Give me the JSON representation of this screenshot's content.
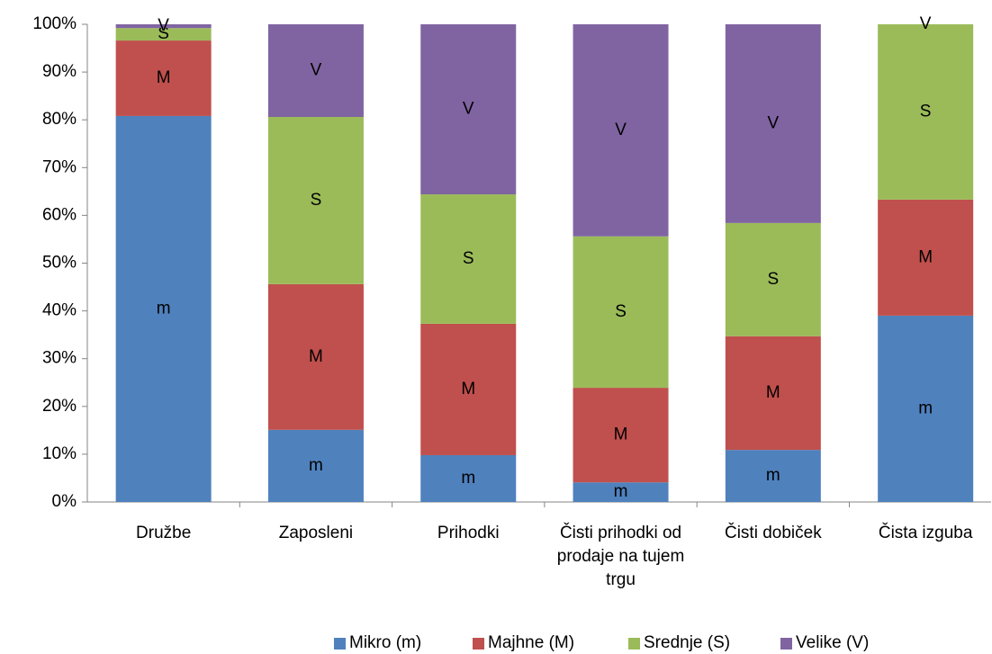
{
  "chart_data": {
    "type": "stacked_bar_100",
    "categories": [
      "Družbe",
      "Zaposleni",
      "Prihodki",
      "Čisti prihodki od prodaje na tujem trgu",
      "Čisti dobiček",
      "Čista izguba"
    ],
    "series": [
      {
        "name": "Mikro (m)",
        "color": "#4f81bd",
        "values": [
          80.8,
          15.1,
          9.8,
          4.1,
          10.9,
          39.0
        ],
        "value_labels": [
          "m",
          "m",
          "m",
          "m",
          "m",
          "m"
        ]
      },
      {
        "name": "Majhne (M)",
        "color": "#c0504d",
        "values": [
          15.8,
          30.5,
          27.5,
          19.8,
          23.8,
          24.3
        ],
        "value_labels": [
          "M",
          "M",
          "M",
          "M",
          "M",
          "M"
        ]
      },
      {
        "name": "Srednje (S)",
        "color": "#9bbb59",
        "values": [
          2.6,
          35.0,
          27.1,
          31.7,
          23.7,
          36.7
        ],
        "value_labels": [
          "S",
          "S",
          "S",
          "S",
          "S",
          "S"
        ]
      },
      {
        "name": "Velike (V)",
        "color": "#8064a2",
        "values": [
          0.8,
          19.4,
          35.6,
          44.4,
          41.6,
          0
        ],
        "value_labels": [
          "V",
          "V",
          "V",
          "V",
          "V",
          "V"
        ]
      }
    ],
    "ylim": [
      0,
      100
    ],
    "yticks": [
      {
        "value": 0,
        "label": "0%"
      },
      {
        "value": 10,
        "label": "10%"
      },
      {
        "value": 20,
        "label": "20%"
      },
      {
        "value": 30,
        "label": "30%"
      },
      {
        "value": 40,
        "label": "40%"
      },
      {
        "value": 50,
        "label": "50%"
      },
      {
        "value": 60,
        "label": "60%"
      },
      {
        "value": 70,
        "label": "70%"
      },
      {
        "value": 80,
        "label": "80%"
      },
      {
        "value": 90,
        "label": "90%"
      },
      {
        "value": 100,
        "label": "100%"
      }
    ],
    "legend": "bottom"
  }
}
